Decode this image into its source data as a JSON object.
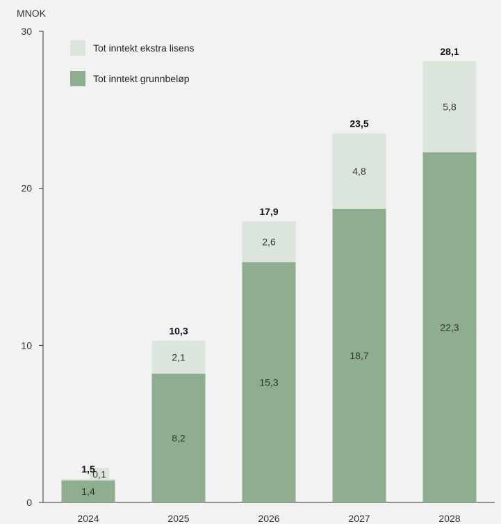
{
  "chart_data": {
    "type": "bar",
    "stacked": true,
    "unit_label": "MNOK",
    "categories": [
      "2024",
      "2025",
      "2026",
      "2027",
      "2028"
    ],
    "series": [
      {
        "name": "Tot inntekt grunnbeløp",
        "color": "#8fad8f",
        "values": [
          1.4,
          8.2,
          15.3,
          18.7,
          22.3
        ],
        "labels": [
          "1,4",
          "8,2",
          "15,3",
          "18,7",
          "22,3"
        ]
      },
      {
        "name": "Tot inntekt ekstra lisens",
        "color": "#dbe5db",
        "values": [
          0.1,
          2.1,
          2.6,
          4.8,
          5.8
        ],
        "labels": [
          "0,1",
          "2,1",
          "2,6",
          "4,8",
          "5,8"
        ]
      }
    ],
    "totals": [
      "1,5",
      "10,3",
      "17,9",
      "23,5",
      "28,1"
    ],
    "yticks": [
      0,
      10,
      20,
      30
    ],
    "ylim": [
      0,
      30
    ],
    "grid": false,
    "legend_position": "top-left",
    "legend_order": [
      "Tot inntekt ekstra lisens",
      "Tot inntekt grunnbeløp"
    ]
  }
}
